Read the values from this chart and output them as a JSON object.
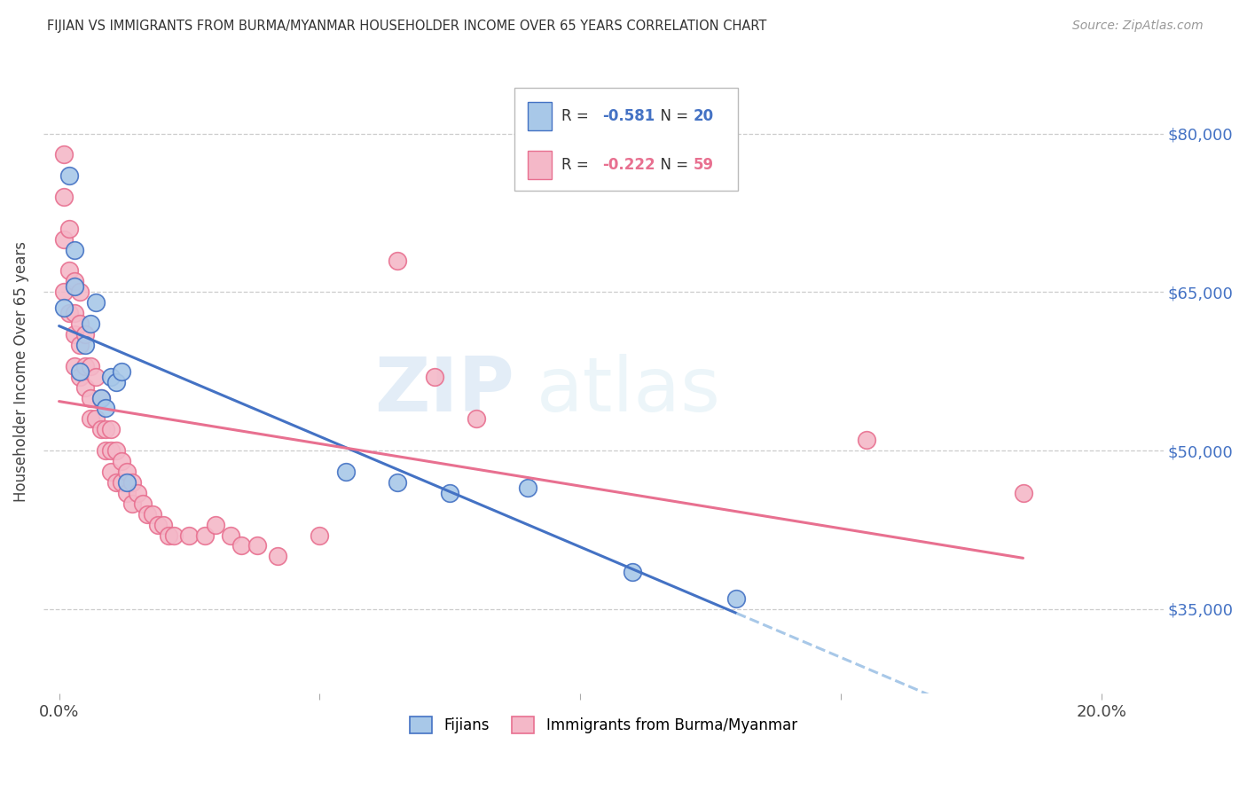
{
  "title": "FIJIAN VS IMMIGRANTS FROM BURMA/MYANMAR HOUSEHOLDER INCOME OVER 65 YEARS CORRELATION CHART",
  "source": "Source: ZipAtlas.com",
  "ylabel": "Householder Income Over 65 years",
  "x_ticks": [
    0.0,
    0.05,
    0.1,
    0.15,
    0.2
  ],
  "x_tick_labels": [
    "0.0%",
    "",
    "",
    "",
    "20.0%"
  ],
  "y_ticks": [
    35000,
    50000,
    65000,
    80000
  ],
  "y_tick_labels": [
    "$35,000",
    "$50,000",
    "$65,000",
    "$80,000"
  ],
  "xlim": [
    -0.003,
    0.212
  ],
  "ylim": [
    27000,
    88000
  ],
  "blue_color": "#a8c8e8",
  "pink_color": "#f4b8c8",
  "blue_line_color": "#4472c4",
  "pink_line_color": "#e87090",
  "blue_dashed_color": "#a8c8e8",
  "watermark_zip": "ZIP",
  "watermark_atlas": "atlas",
  "fijian_x": [
    0.001,
    0.002,
    0.003,
    0.003,
    0.004,
    0.005,
    0.006,
    0.007,
    0.008,
    0.009,
    0.01,
    0.011,
    0.012,
    0.013,
    0.055,
    0.065,
    0.075,
    0.09,
    0.11,
    0.13
  ],
  "fijian_y": [
    63500,
    76000,
    65500,
    69000,
    57500,
    60000,
    62000,
    64000,
    55000,
    54000,
    57000,
    56500,
    57500,
    47000,
    48000,
    47000,
    46000,
    46500,
    38500,
    36000
  ],
  "burma_x": [
    0.001,
    0.001,
    0.001,
    0.001,
    0.002,
    0.002,
    0.002,
    0.003,
    0.003,
    0.003,
    0.003,
    0.004,
    0.004,
    0.004,
    0.004,
    0.005,
    0.005,
    0.005,
    0.006,
    0.006,
    0.006,
    0.007,
    0.007,
    0.008,
    0.008,
    0.009,
    0.009,
    0.01,
    0.01,
    0.01,
    0.011,
    0.011,
    0.012,
    0.012,
    0.013,
    0.013,
    0.014,
    0.014,
    0.015,
    0.016,
    0.017,
    0.018,
    0.019,
    0.02,
    0.021,
    0.022,
    0.025,
    0.028,
    0.03,
    0.033,
    0.035,
    0.038,
    0.042,
    0.05,
    0.065,
    0.072,
    0.08,
    0.155,
    0.185
  ],
  "burma_y": [
    78000,
    74000,
    70000,
    65000,
    71000,
    67000,
    63000,
    66000,
    63000,
    61000,
    58000,
    65000,
    62000,
    60000,
    57000,
    61000,
    58000,
    56000,
    58000,
    55000,
    53000,
    57000,
    53000,
    55000,
    52000,
    52000,
    50000,
    52000,
    50000,
    48000,
    50000,
    47000,
    49000,
    47000,
    48000,
    46000,
    47000,
    45000,
    46000,
    45000,
    44000,
    44000,
    43000,
    43000,
    42000,
    42000,
    42000,
    42000,
    43000,
    42000,
    41000,
    41000,
    40000,
    42000,
    68000,
    57000,
    53000,
    51000,
    46000
  ]
}
